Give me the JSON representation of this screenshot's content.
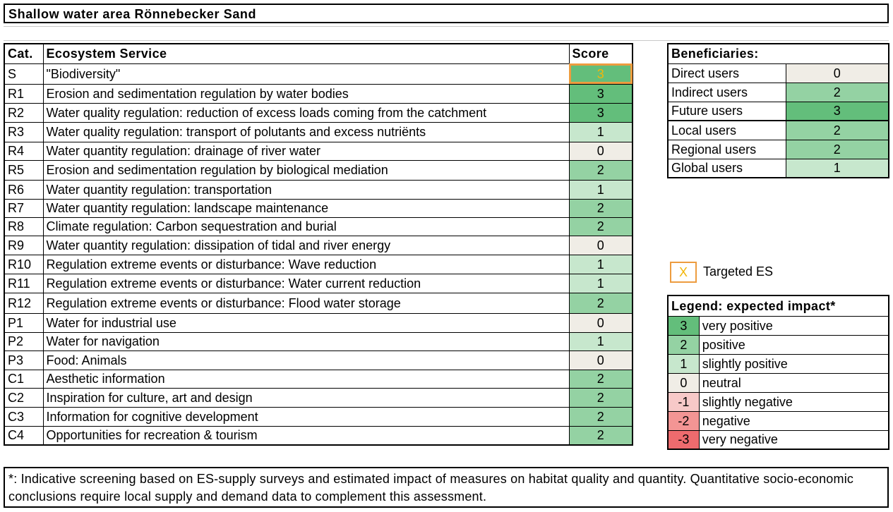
{
  "title": "Shallow water area Rönnebecker Sand",
  "colors": {
    "score_3": "#63be7b",
    "score_2": "#94d2a3",
    "score_1": "#c7e7cd",
    "score_0": "#f0ede6",
    "score_neg1": "#f7c9c8",
    "score_neg2": "#f39594",
    "score_neg3": "#ee6b6e",
    "targeted_border": "#ed9c3f",
    "targeted_text": "#f2b60a"
  },
  "es_table": {
    "headers": {
      "cat": "Cat.",
      "service": "Ecosystem Service",
      "score": "Score"
    },
    "rows": [
      {
        "cat": "S",
        "service": "\"Biodiversity\"",
        "score": "3",
        "targeted": true
      },
      {
        "cat": "R1",
        "service": "Erosion and sedimentation regulation by water bodies",
        "score": "3"
      },
      {
        "cat": "R2",
        "service": "Water quality regulation: reduction of excess loads coming from the catchment",
        "score": "3"
      },
      {
        "cat": "R3",
        "service": "Water quality regulation: transport of polutants and excess nutriënts",
        "score": "1"
      },
      {
        "cat": "R4",
        "service": "Water quantity regulation: drainage of river water",
        "score": "0"
      },
      {
        "cat": "R5",
        "service": "Erosion and sedimentation regulation by biological mediation",
        "score": "2"
      },
      {
        "cat": "R6",
        "service": "Water quantity regulation: transportation",
        "score": "1"
      },
      {
        "cat": "R7",
        "service": "Water quantity regulation: landscape maintenance",
        "score": "2"
      },
      {
        "cat": "R8",
        "service": "Climate regulation: Carbon sequestration and burial",
        "score": "2"
      },
      {
        "cat": "R9",
        "service": "Water quantity regulation: dissipation of tidal and river energy",
        "score": "0"
      },
      {
        "cat": "R10",
        "service": "Regulation extreme events or disturbance: Wave reduction",
        "score": "1"
      },
      {
        "cat": "R11",
        "service": "Regulation extreme events or disturbance: Water current reduction",
        "score": "1"
      },
      {
        "cat": "R12",
        "service": "Regulation extreme events or disturbance: Flood water storage",
        "score": "2"
      },
      {
        "cat": "P1",
        "service": "Water for industrial use",
        "score": "0"
      },
      {
        "cat": "P2",
        "service": "Water for navigation",
        "score": "1"
      },
      {
        "cat": "P3",
        "service": "Food: Animals",
        "score": "0"
      },
      {
        "cat": "C1",
        "service": "Aesthetic information",
        "score": "2"
      },
      {
        "cat": "C2",
        "service": "Inspiration for culture, art and design",
        "score": "2"
      },
      {
        "cat": "C3",
        "service": "Information for cognitive development",
        "score": "2"
      },
      {
        "cat": "C4",
        "service": "Opportunities for recreation & tourism",
        "score": "2"
      }
    ]
  },
  "beneficiaries": {
    "header": "Beneficiaries:",
    "rows": [
      {
        "label": "Direct users",
        "score": "0"
      },
      {
        "label": "Indirect users",
        "score": "2"
      },
      {
        "label": "Future users",
        "score": "3"
      },
      {
        "label": "Local users",
        "score": "2"
      },
      {
        "label": "Regional users",
        "score": "2"
      },
      {
        "label": "Global users",
        "score": "1"
      }
    ]
  },
  "targeted_key": {
    "symbol": "X",
    "label": "Targeted ES"
  },
  "legend": {
    "header": "Legend: expected  impact*",
    "rows": [
      {
        "value": "3",
        "label": "very positive"
      },
      {
        "value": "2",
        "label": "positive"
      },
      {
        "value": "1",
        "label": "slightly positive"
      },
      {
        "value": "0",
        "label": "neutral"
      },
      {
        "value": "-1",
        "label": "slightly negative"
      },
      {
        "value": "-2",
        "label": "negative"
      },
      {
        "value": "-3",
        "label": "very negative"
      }
    ]
  },
  "footnote": "*: Indicative screening based on ES-supply surveys and estimated impact of measures on habitat quality and quantity. Quantitative socio-economic conclusions require local supply and demand data to complement this assessment."
}
